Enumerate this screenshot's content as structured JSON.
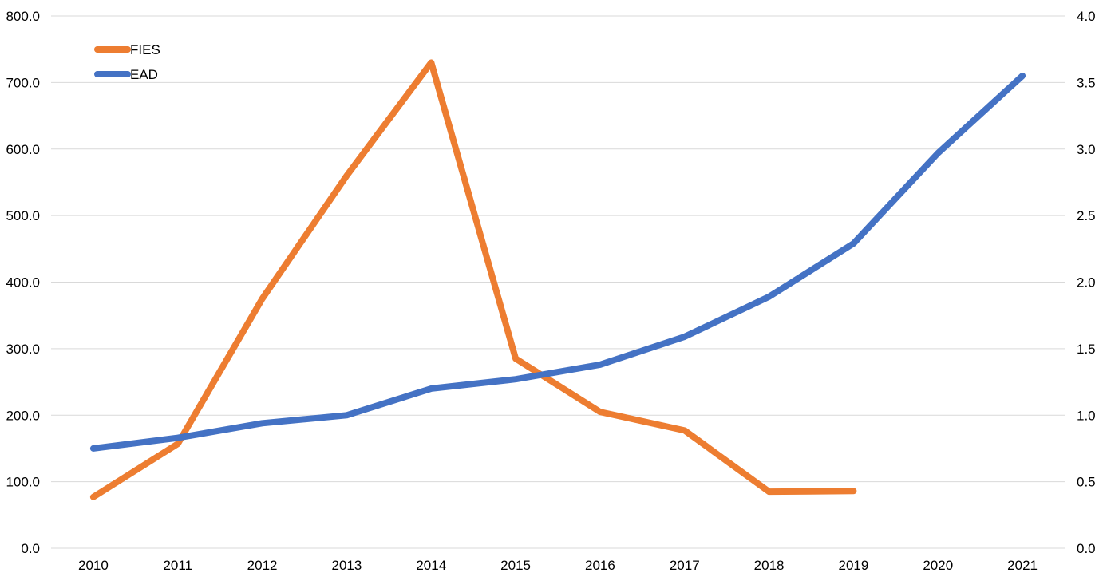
{
  "chart_data": {
    "type": "line",
    "title": "",
    "xlabel": "",
    "ylabel_left": "",
    "ylabel_right": "",
    "categories": [
      "2010",
      "2011",
      "2012",
      "2013",
      "2014",
      "2015",
      "2016",
      "2017",
      "2018",
      "2019",
      "2020",
      "2021"
    ],
    "y_left": {
      "ylim": [
        0,
        800
      ],
      "ticks": [
        "0.0",
        "100.0",
        "200.0",
        "300.0",
        "400.0",
        "500.0",
        "600.0",
        "700.0",
        "800.0"
      ]
    },
    "y_right": {
      "ylim": [
        0,
        4
      ],
      "ticks": [
        "0.0",
        "0.5",
        "1.0",
        "1.5",
        "2.0",
        "2.5",
        "3.0",
        "3.5",
        "4.0"
      ]
    },
    "grid": true,
    "legend_position": "top-left",
    "series": [
      {
        "name": "FIES",
        "axis": "left",
        "color": "#ED7D31",
        "values": [
          77,
          157,
          375,
          560,
          730,
          285,
          205,
          177,
          85,
          86,
          null,
          null
        ]
      },
      {
        "name": "EAD",
        "axis": "right",
        "color": "#4472C4",
        "values": [
          0.75,
          0.83,
          0.94,
          1.0,
          1.2,
          1.27,
          1.38,
          1.59,
          1.89,
          2.29,
          2.97,
          3.55
        ]
      }
    ]
  }
}
